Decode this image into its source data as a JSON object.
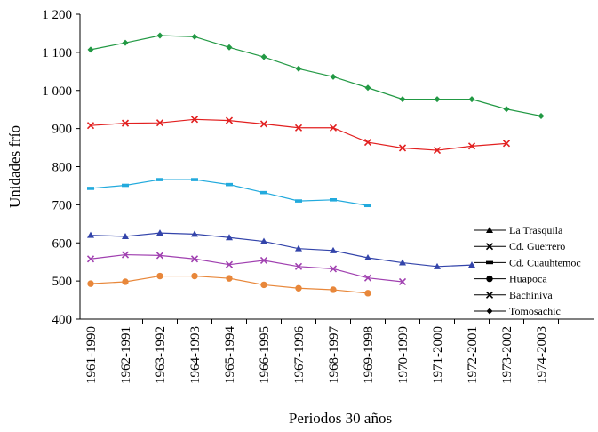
{
  "chart_data": {
    "type": "line",
    "title": "",
    "xlabel": "Periodos 30 años",
    "ylabel": "Unidades frío",
    "ylim": [
      400,
      1200
    ],
    "y_ticks": [
      400,
      500,
      600,
      700,
      800,
      900,
      1000,
      1100,
      1200
    ],
    "y_tick_labels": [
      "400",
      "500",
      "600",
      "700",
      "800",
      "900",
      "1 000",
      "1 100",
      "1 200"
    ],
    "grid": false,
    "legend_position": "right",
    "categories": [
      "1961-1990",
      "1962-1991",
      "1963-1992",
      "1964-1993",
      "1965-1994",
      "1966-1995",
      "1967-1996",
      "1968-1997",
      "1969-1998",
      "1970-1999",
      "1971-2000",
      "1972-2001",
      "1973-2002",
      "1974-2003"
    ],
    "series": [
      {
        "name": "La Trasquila",
        "color": "#3344aa",
        "marker": "triangle",
        "values": [
          620,
          617,
          626,
          623,
          614,
          604,
          585,
          580,
          561,
          548,
          538,
          542,
          null,
          null
        ]
      },
      {
        "name": "Cd. Guerrero",
        "color": "#e22020",
        "marker": "x",
        "values": [
          908,
          914,
          915,
          924,
          921,
          912,
          902,
          902,
          864,
          849,
          843,
          854,
          861,
          null
        ]
      },
      {
        "name": "Cd. Cuauhtemoc",
        "color": "#22aadd",
        "marker": "dash",
        "values": [
          743,
          751,
          766,
          766,
          753,
          732,
          710,
          713,
          698,
          null,
          null,
          null,
          null,
          null
        ]
      },
      {
        "name": "Huapoca",
        "color": "#e8873a",
        "marker": "circle",
        "values": [
          493,
          498,
          513,
          513,
          507,
          490,
          481,
          477,
          468,
          null,
          null,
          null,
          null,
          null
        ]
      },
      {
        "name": "Bachiniva",
        "color": "#a040b0",
        "marker": "x",
        "values": [
          558,
          569,
          567,
          558,
          543,
          554,
          538,
          532,
          508,
          498,
          null,
          null,
          null,
          null
        ]
      },
      {
        "name": "Tomosachic",
        "color": "#229944",
        "marker": "diamond",
        "values": [
          1107,
          1125,
          1144,
          1141,
          1113,
          1088,
          1057,
          1036,
          1007,
          977,
          977,
          977,
          951,
          933
        ]
      }
    ]
  }
}
